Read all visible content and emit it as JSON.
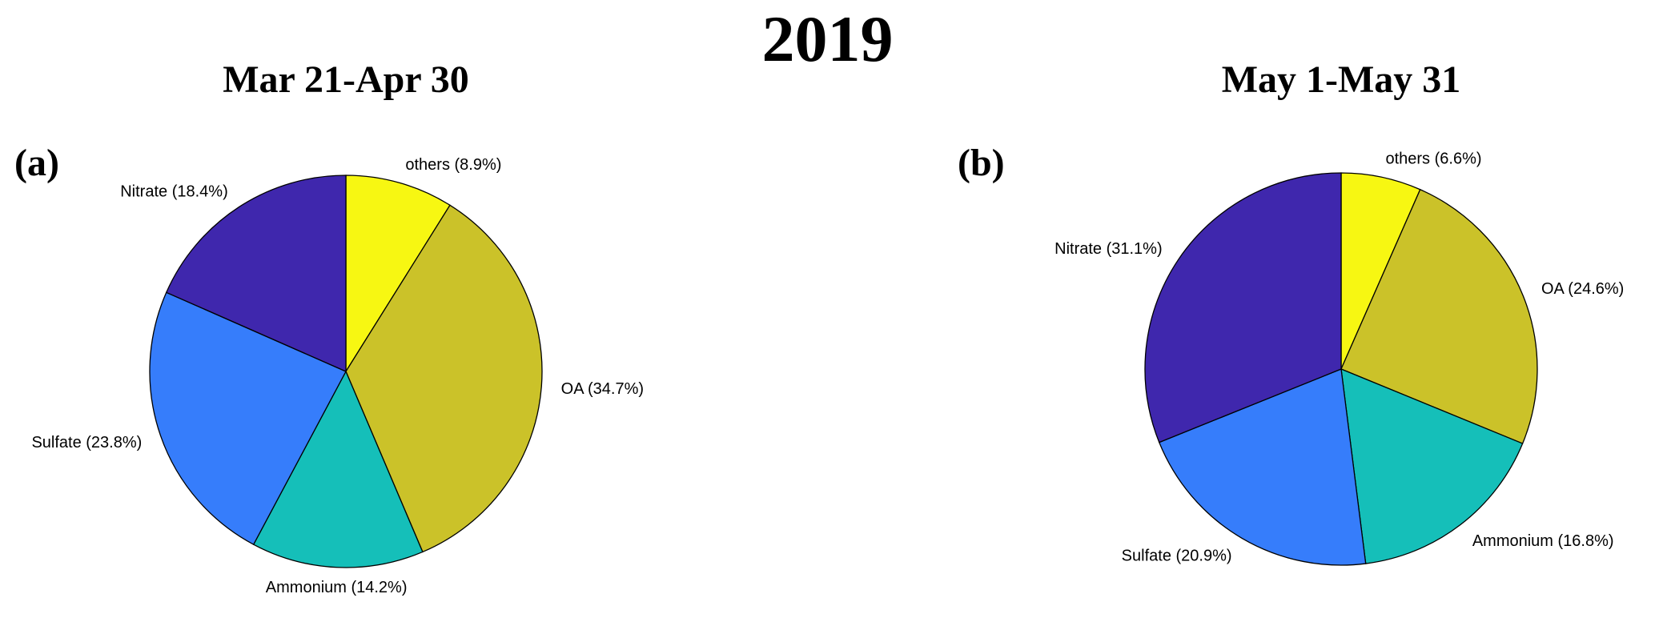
{
  "title": "2019",
  "chart_data": [
    {
      "type": "pie",
      "panel": "(a)",
      "title": "Mar 21-Apr 30",
      "slices": [
        {
          "label": "others (8.9%)",
          "name": "others",
          "value": 8.9,
          "color": "#f7f712"
        },
        {
          "label": "OA (34.7%)",
          "name": "OA",
          "value": 34.7,
          "color": "#cbc229"
        },
        {
          "label": "Ammonium (14.2%)",
          "name": "Ammonium",
          "value": 14.2,
          "color": "#15bfb9"
        },
        {
          "label": "Sulfate (23.8%)",
          "name": "Sulfate",
          "value": 23.8,
          "color": "#367dfb"
        },
        {
          "label": "Nitrate (18.4%)",
          "name": "Nitrate",
          "value": 18.4,
          "color": "#3f27ad"
        }
      ]
    },
    {
      "type": "pie",
      "panel": "(b)",
      "title": "May 1-May 31",
      "slices": [
        {
          "label": "others (6.6%)",
          "name": "others",
          "value": 6.6,
          "color": "#f7f712"
        },
        {
          "label": "OA (24.6%)",
          "name": "OA",
          "value": 24.6,
          "color": "#cbc229"
        },
        {
          "label": "Ammonium (16.8%)",
          "name": "Ammonium",
          "value": 16.8,
          "color": "#15bfb9"
        },
        {
          "label": "Sulfate (20.9%)",
          "name": "Sulfate",
          "value": 20.9,
          "color": "#367dfb"
        },
        {
          "label": "Nitrate (31.1%)",
          "name": "Nitrate",
          "value": 31.1,
          "color": "#3f27ad"
        }
      ]
    }
  ]
}
